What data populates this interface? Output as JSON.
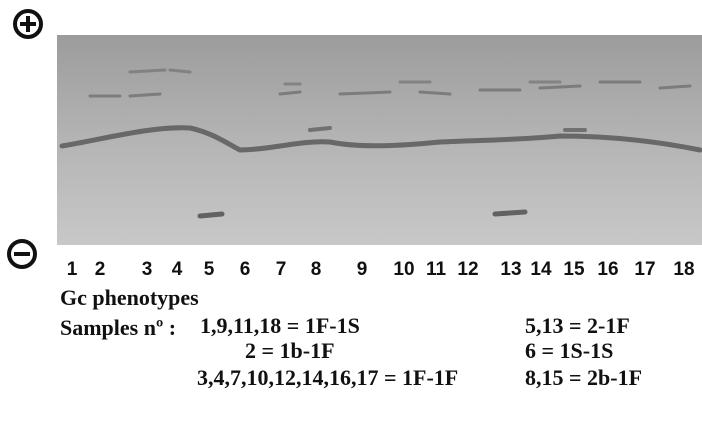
{
  "lanes": [
    "1",
    "2",
    "3",
    "4",
    "5",
    "6",
    "7",
    "8",
    "9",
    "10",
    "11",
    "12",
    "13",
    "14",
    "15",
    "16",
    "17",
    "18"
  ],
  "caption": {
    "title": "Gc phenotypes",
    "samples_label": "Samples nº :"
  },
  "phenotypes_left": [
    "1,9,11,18 = 1F-1S",
    "2 = 1b-1F",
    "3,4,7,10,12,14,16,17 = 1F-1F"
  ],
  "phenotypes_right": [
    "5,13 = 2-1F",
    "6 = 1S-1S",
    "8,15 = 2b-1F"
  ]
}
